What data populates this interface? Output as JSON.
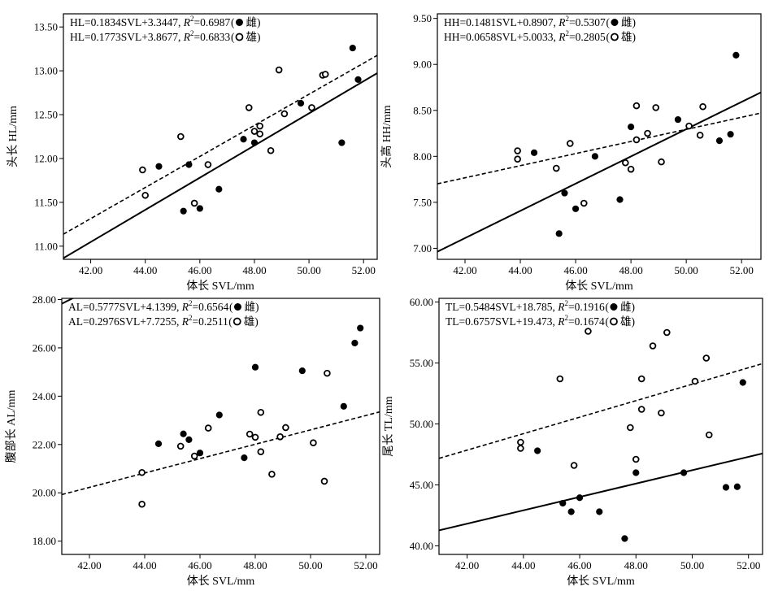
{
  "chart_data": [
    {
      "type": "scatter",
      "ylabel": "头长 HL/mm",
      "xlabel": "体长 SVL/mm",
      "xlim": [
        41.0,
        52.5
      ],
      "ylim": [
        10.85,
        13.65
      ],
      "x_ticks": [
        "42.00",
        "44.00",
        "46.00",
        "48.00",
        "50.00",
        "52.00"
      ],
      "y_ticks": [
        "11.00",
        "11.50",
        "12.00",
        "12.50",
        "13.00",
        "13.50"
      ],
      "legend": [
        {
          "eq": "HL=0.1834SVL+3.3447, ",
          "r2": "=0.6987",
          "sex": "雌",
          "filled": true
        },
        {
          "eq": "HL=0.1773SVL+3.8677, ",
          "r2": "=0.6833",
          "sex": "雄",
          "filled": false
        }
      ],
      "series": [
        {
          "filled": true,
          "slope": 0.1834,
          "intercept": 3.3447,
          "dashed": false,
          "points": [
            [
              44.5,
              11.91
            ],
            [
              45.4,
              11.4
            ],
            [
              45.6,
              11.93
            ],
            [
              46.0,
              11.43
            ],
            [
              46.7,
              11.65
            ],
            [
              47.6,
              12.22
            ],
            [
              48.0,
              12.18
            ],
            [
              49.7,
              12.63
            ],
            [
              51.2,
              12.18
            ],
            [
              51.6,
              13.26
            ],
            [
              51.8,
              12.9
            ]
          ]
        },
        {
          "filled": false,
          "slope": 0.1773,
          "intercept": 3.8677,
          "dashed": true,
          "points": [
            [
              43.9,
              11.87
            ],
            [
              44.0,
              11.58
            ],
            [
              45.3,
              12.25
            ],
            [
              45.8,
              11.49
            ],
            [
              46.3,
              11.93
            ],
            [
              47.8,
              12.58
            ],
            [
              48.0,
              12.31
            ],
            [
              48.2,
              12.37
            ],
            [
              48.2,
              12.28
            ],
            [
              48.6,
              12.09
            ],
            [
              48.9,
              13.01
            ],
            [
              49.1,
              12.51
            ],
            [
              50.1,
              12.58
            ],
            [
              50.5,
              12.95
            ],
            [
              50.6,
              12.96
            ]
          ]
        }
      ]
    },
    {
      "type": "scatter",
      "ylabel": "头高 HH/mm",
      "xlabel": "体长 SVL/mm",
      "xlim": [
        41.0,
        52.7
      ],
      "ylim": [
        6.88,
        9.55
      ],
      "x_ticks": [
        "42.00",
        "44.00",
        "46.00",
        "48.00",
        "50.00",
        "52.00"
      ],
      "y_ticks": [
        "7.00",
        "7.50",
        "8.00",
        "8.50",
        "9.00",
        "9.50"
      ],
      "legend": [
        {
          "eq": "HH=0.1481SVL+0.8907, ",
          "r2": "=0.5307",
          "sex": "雌",
          "filled": true
        },
        {
          "eq": "HH=0.0658SVL+5.0033, ",
          "r2": "=0.2805",
          "sex": "雄",
          "filled": false
        }
      ],
      "series": [
        {
          "filled": true,
          "slope": 0.1481,
          "intercept": 0.8907,
          "dashed": false,
          "points": [
            [
              44.5,
              8.04
            ],
            [
              45.4,
              7.16
            ],
            [
              45.6,
              7.6
            ],
            [
              46.0,
              7.43
            ],
            [
              46.7,
              8.0
            ],
            [
              47.6,
              7.53
            ],
            [
              48.0,
              8.32
            ],
            [
              49.7,
              8.4
            ],
            [
              51.2,
              8.17
            ],
            [
              51.6,
              8.24
            ],
            [
              51.8,
              9.1
            ]
          ]
        },
        {
          "filled": false,
          "slope": 0.0658,
          "intercept": 5.0033,
          "dashed": true,
          "points": [
            [
              43.9,
              8.06
            ],
            [
              43.9,
              7.97
            ],
            [
              45.3,
              7.87
            ],
            [
              45.8,
              8.14
            ],
            [
              46.3,
              7.49
            ],
            [
              47.8,
              7.93
            ],
            [
              48.0,
              7.86
            ],
            [
              48.2,
              8.55
            ],
            [
              48.2,
              8.18
            ],
            [
              48.6,
              8.25
            ],
            [
              48.9,
              8.53
            ],
            [
              49.1,
              7.94
            ],
            [
              50.1,
              8.33
            ],
            [
              50.5,
              8.23
            ],
            [
              50.6,
              8.54
            ]
          ]
        }
      ]
    },
    {
      "type": "scatter",
      "ylabel": "腹部长 AL/mm",
      "xlabel": "体长 SVL/mm",
      "xlim": [
        41.0,
        52.5
      ],
      "ylim": [
        17.45,
        28.05
      ],
      "x_ticks": [
        "42.00",
        "44.00",
        "46.00",
        "48.00",
        "50.00",
        "52.00"
      ],
      "y_ticks": [
        "18.00",
        "20.00",
        "22.00",
        "24.00",
        "26.00",
        "28.00"
      ],
      "legend": [
        {
          "eq": "AL=0.5777SVL+4.1399, ",
          "r2": "=0.6564",
          "sex": "雌",
          "filled": true
        },
        {
          "eq": "AL=0.2976SVL+7.7255, ",
          "r2": "=0.2511",
          "sex": "雄",
          "filled": false
        }
      ],
      "series": [
        {
          "filled": true,
          "slope": 0.5777,
          "intercept": 4.1399,
          "dashed": false,
          "points": [
            [
              44.5,
              22.03
            ],
            [
              45.4,
              22.44
            ],
            [
              45.6,
              22.2
            ],
            [
              46.0,
              21.65
            ],
            [
              46.7,
              23.22
            ],
            [
              47.6,
              21.45
            ],
            [
              48.0,
              25.2
            ],
            [
              49.7,
              25.05
            ],
            [
              51.2,
              23.58
            ],
            [
              51.6,
              26.2
            ],
            [
              51.8,
              26.82
            ]
          ]
        },
        {
          "filled": false,
          "slope": 0.2976,
          "intercept": 7.7255,
          "dashed": true,
          "points": [
            [
              43.9,
              20.84
            ],
            [
              43.9,
              19.53
            ],
            [
              45.3,
              21.93
            ],
            [
              45.8,
              21.52
            ],
            [
              46.3,
              22.68
            ],
            [
              47.8,
              22.43
            ],
            [
              48.0,
              22.3
            ],
            [
              48.2,
              23.33
            ],
            [
              48.2,
              21.7
            ],
            [
              48.6,
              20.77
            ],
            [
              48.9,
              22.32
            ],
            [
              49.1,
              22.7
            ],
            [
              50.1,
              22.07
            ],
            [
              50.5,
              20.48
            ],
            [
              50.6,
              24.95
            ]
          ]
        }
      ]
    },
    {
      "type": "scatter",
      "ylabel": "尾长 TL/mm",
      "xlabel": "体长 SVL/mm",
      "xlim": [
        41.0,
        52.5
      ],
      "ylim": [
        39.3,
        60.3
      ],
      "x_ticks": [
        "42.00",
        "44.00",
        "46.00",
        "48.00",
        "50.00",
        "52.00"
      ],
      "y_ticks": [
        "40.00",
        "45.00",
        "50.00",
        "55.00",
        "60.00"
      ],
      "legend": [
        {
          "eq": "TL=0.5484SVL+18.785, ",
          "r2": "=0.1916",
          "sex": "雌",
          "filled": true
        },
        {
          "eq": "TL=0.6757SVL+19.473, ",
          "r2": "=0.1674",
          "sex": "雄",
          "filled": false
        }
      ],
      "series": [
        {
          "filled": true,
          "slope": 0.5484,
          "intercept": 18.785,
          "dashed": false,
          "points": [
            [
              44.5,
              47.8
            ],
            [
              45.4,
              43.5
            ],
            [
              45.7,
              42.8
            ],
            [
              46.0,
              43.95
            ],
            [
              46.7,
              42.8
            ],
            [
              47.6,
              40.6
            ],
            [
              48.0,
              46.0
            ],
            [
              49.7,
              46.0
            ],
            [
              51.2,
              44.8
            ],
            [
              51.6,
              44.85
            ],
            [
              51.8,
              53.4
            ]
          ]
        },
        {
          "filled": false,
          "slope": 0.6757,
          "intercept": 19.473,
          "dashed": true,
          "points": [
            [
              43.9,
              48.5
            ],
            [
              43.9,
              48.0
            ],
            [
              45.3,
              53.7
            ],
            [
              45.8,
              46.6
            ],
            [
              46.3,
              57.6
            ],
            [
              47.8,
              49.7
            ],
            [
              48.0,
              47.1
            ],
            [
              48.2,
              51.2
            ],
            [
              48.2,
              53.7
            ],
            [
              48.6,
              56.4
            ],
            [
              48.9,
              50.9
            ],
            [
              49.1,
              57.5
            ],
            [
              50.1,
              53.5
            ],
            [
              50.5,
              55.4
            ],
            [
              50.6,
              49.1
            ]
          ]
        }
      ]
    }
  ]
}
